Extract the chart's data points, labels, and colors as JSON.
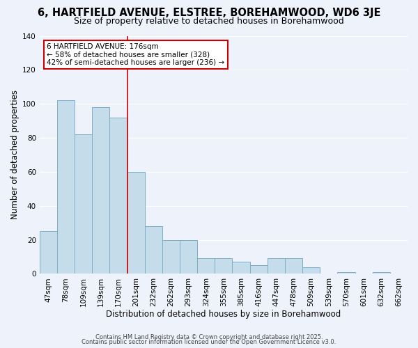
{
  "title": "6, HARTFIELD AVENUE, ELSTREE, BOREHAMWOOD, WD6 3JE",
  "subtitle": "Size of property relative to detached houses in Borehamwood",
  "xlabel": "Distribution of detached houses by size in Borehamwood",
  "ylabel": "Number of detached properties",
  "categories": [
    "47sqm",
    "78sqm",
    "109sqm",
    "139sqm",
    "170sqm",
    "201sqm",
    "232sqm",
    "262sqm",
    "293sqm",
    "324sqm",
    "355sqm",
    "385sqm",
    "416sqm",
    "447sqm",
    "478sqm",
    "509sqm",
    "539sqm",
    "570sqm",
    "601sqm",
    "632sqm",
    "662sqm"
  ],
  "values": [
    25,
    102,
    82,
    98,
    92,
    60,
    28,
    20,
    20,
    9,
    9,
    7,
    5,
    9,
    9,
    4,
    0,
    1,
    0,
    1,
    0
  ],
  "bar_color": "#c5dcea",
  "bar_edge_color": "#7baec8",
  "vline_x_index": 4.5,
  "vline_color": "#cc0000",
  "annotation_title": "6 HARTFIELD AVENUE: 176sqm",
  "annotation_line1": "← 58% of detached houses are smaller (328)",
  "annotation_line2": "42% of semi-detached houses are larger (236) →",
  "annotation_box_color": "#cc0000",
  "ylim": [
    0,
    140
  ],
  "yticks": [
    0,
    20,
    40,
    60,
    80,
    100,
    120,
    140
  ],
  "background_color": "#eef2fb",
  "grid_color": "#ffffff",
  "footer1": "Contains HM Land Registry data © Crown copyright and database right 2025.",
  "footer2": "Contains public sector information licensed under the Open Government Licence v3.0.",
  "title_fontsize": 10.5,
  "subtitle_fontsize": 9,
  "axis_label_fontsize": 8.5,
  "tick_fontsize": 7.5,
  "annotation_fontsize": 7.5,
  "footer_fontsize": 6
}
